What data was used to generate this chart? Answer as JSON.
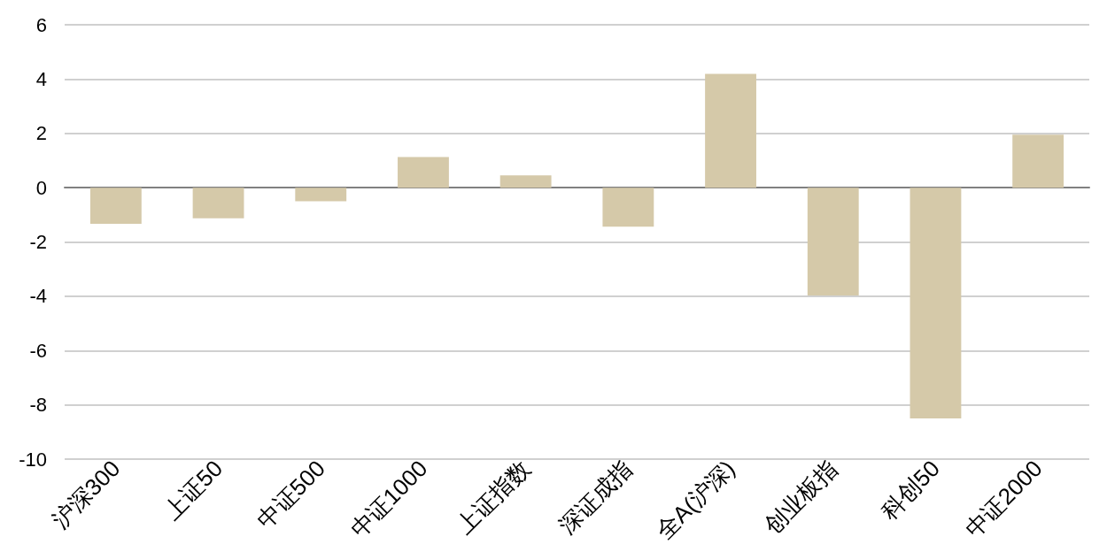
{
  "chart_data": {
    "type": "bar",
    "categories": [
      "沪深300",
      "上证50",
      "中证500",
      "中证1000",
      "上证指数",
      "深证成指",
      "全A(沪深)",
      "创业板指",
      "科创50",
      "中证2000"
    ],
    "values": [
      -1.33,
      -1.13,
      -0.5,
      1.13,
      0.45,
      -1.44,
      4.19,
      -3.97,
      -8.5,
      1.95
    ],
    "color": "#d5c9a9",
    "ylim": [
      -10,
      6
    ],
    "yticks": [
      -10,
      -8,
      -6,
      -4,
      -2,
      0,
      2,
      4,
      6
    ],
    "grid": "y"
  }
}
